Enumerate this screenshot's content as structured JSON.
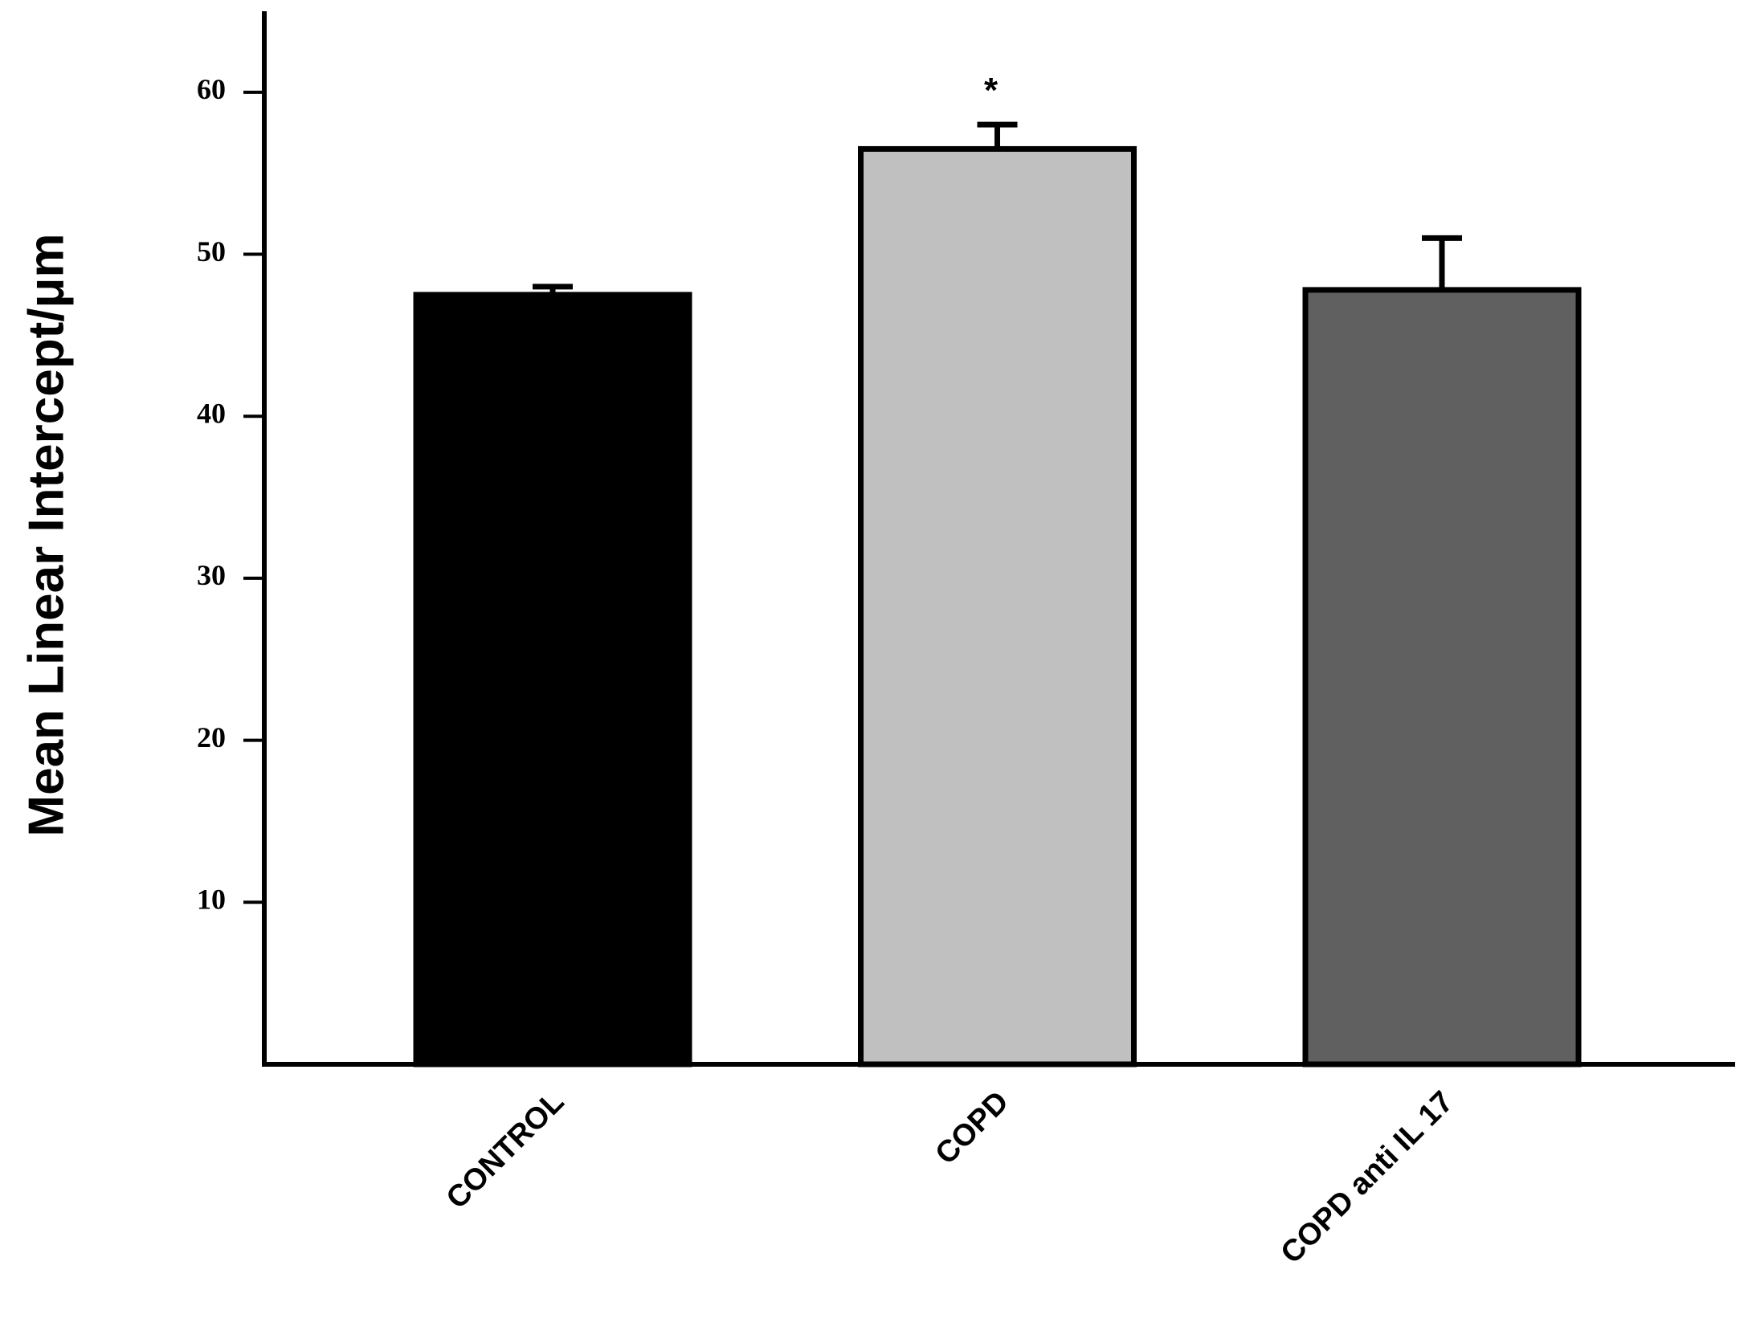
{
  "chart_data": {
    "type": "bar",
    "y_label": "Mean Linear Intercept/μm",
    "categories": [
      "CONTROL",
      "COPD",
      "COPD anti IL 17"
    ],
    "values": [
      47.5,
      56.5,
      47.8
    ],
    "errors": [
      0.5,
      1.5,
      3.2
    ],
    "colors": [
      "#000000",
      "#c0c0c0",
      "#606060"
    ],
    "annotations": [
      {
        "text": "*",
        "category": "COPD"
      }
    ],
    "ylim": [
      0,
      65
    ],
    "yticks": [
      10,
      20,
      30,
      40,
      50,
      60
    ],
    "grid": false
  }
}
